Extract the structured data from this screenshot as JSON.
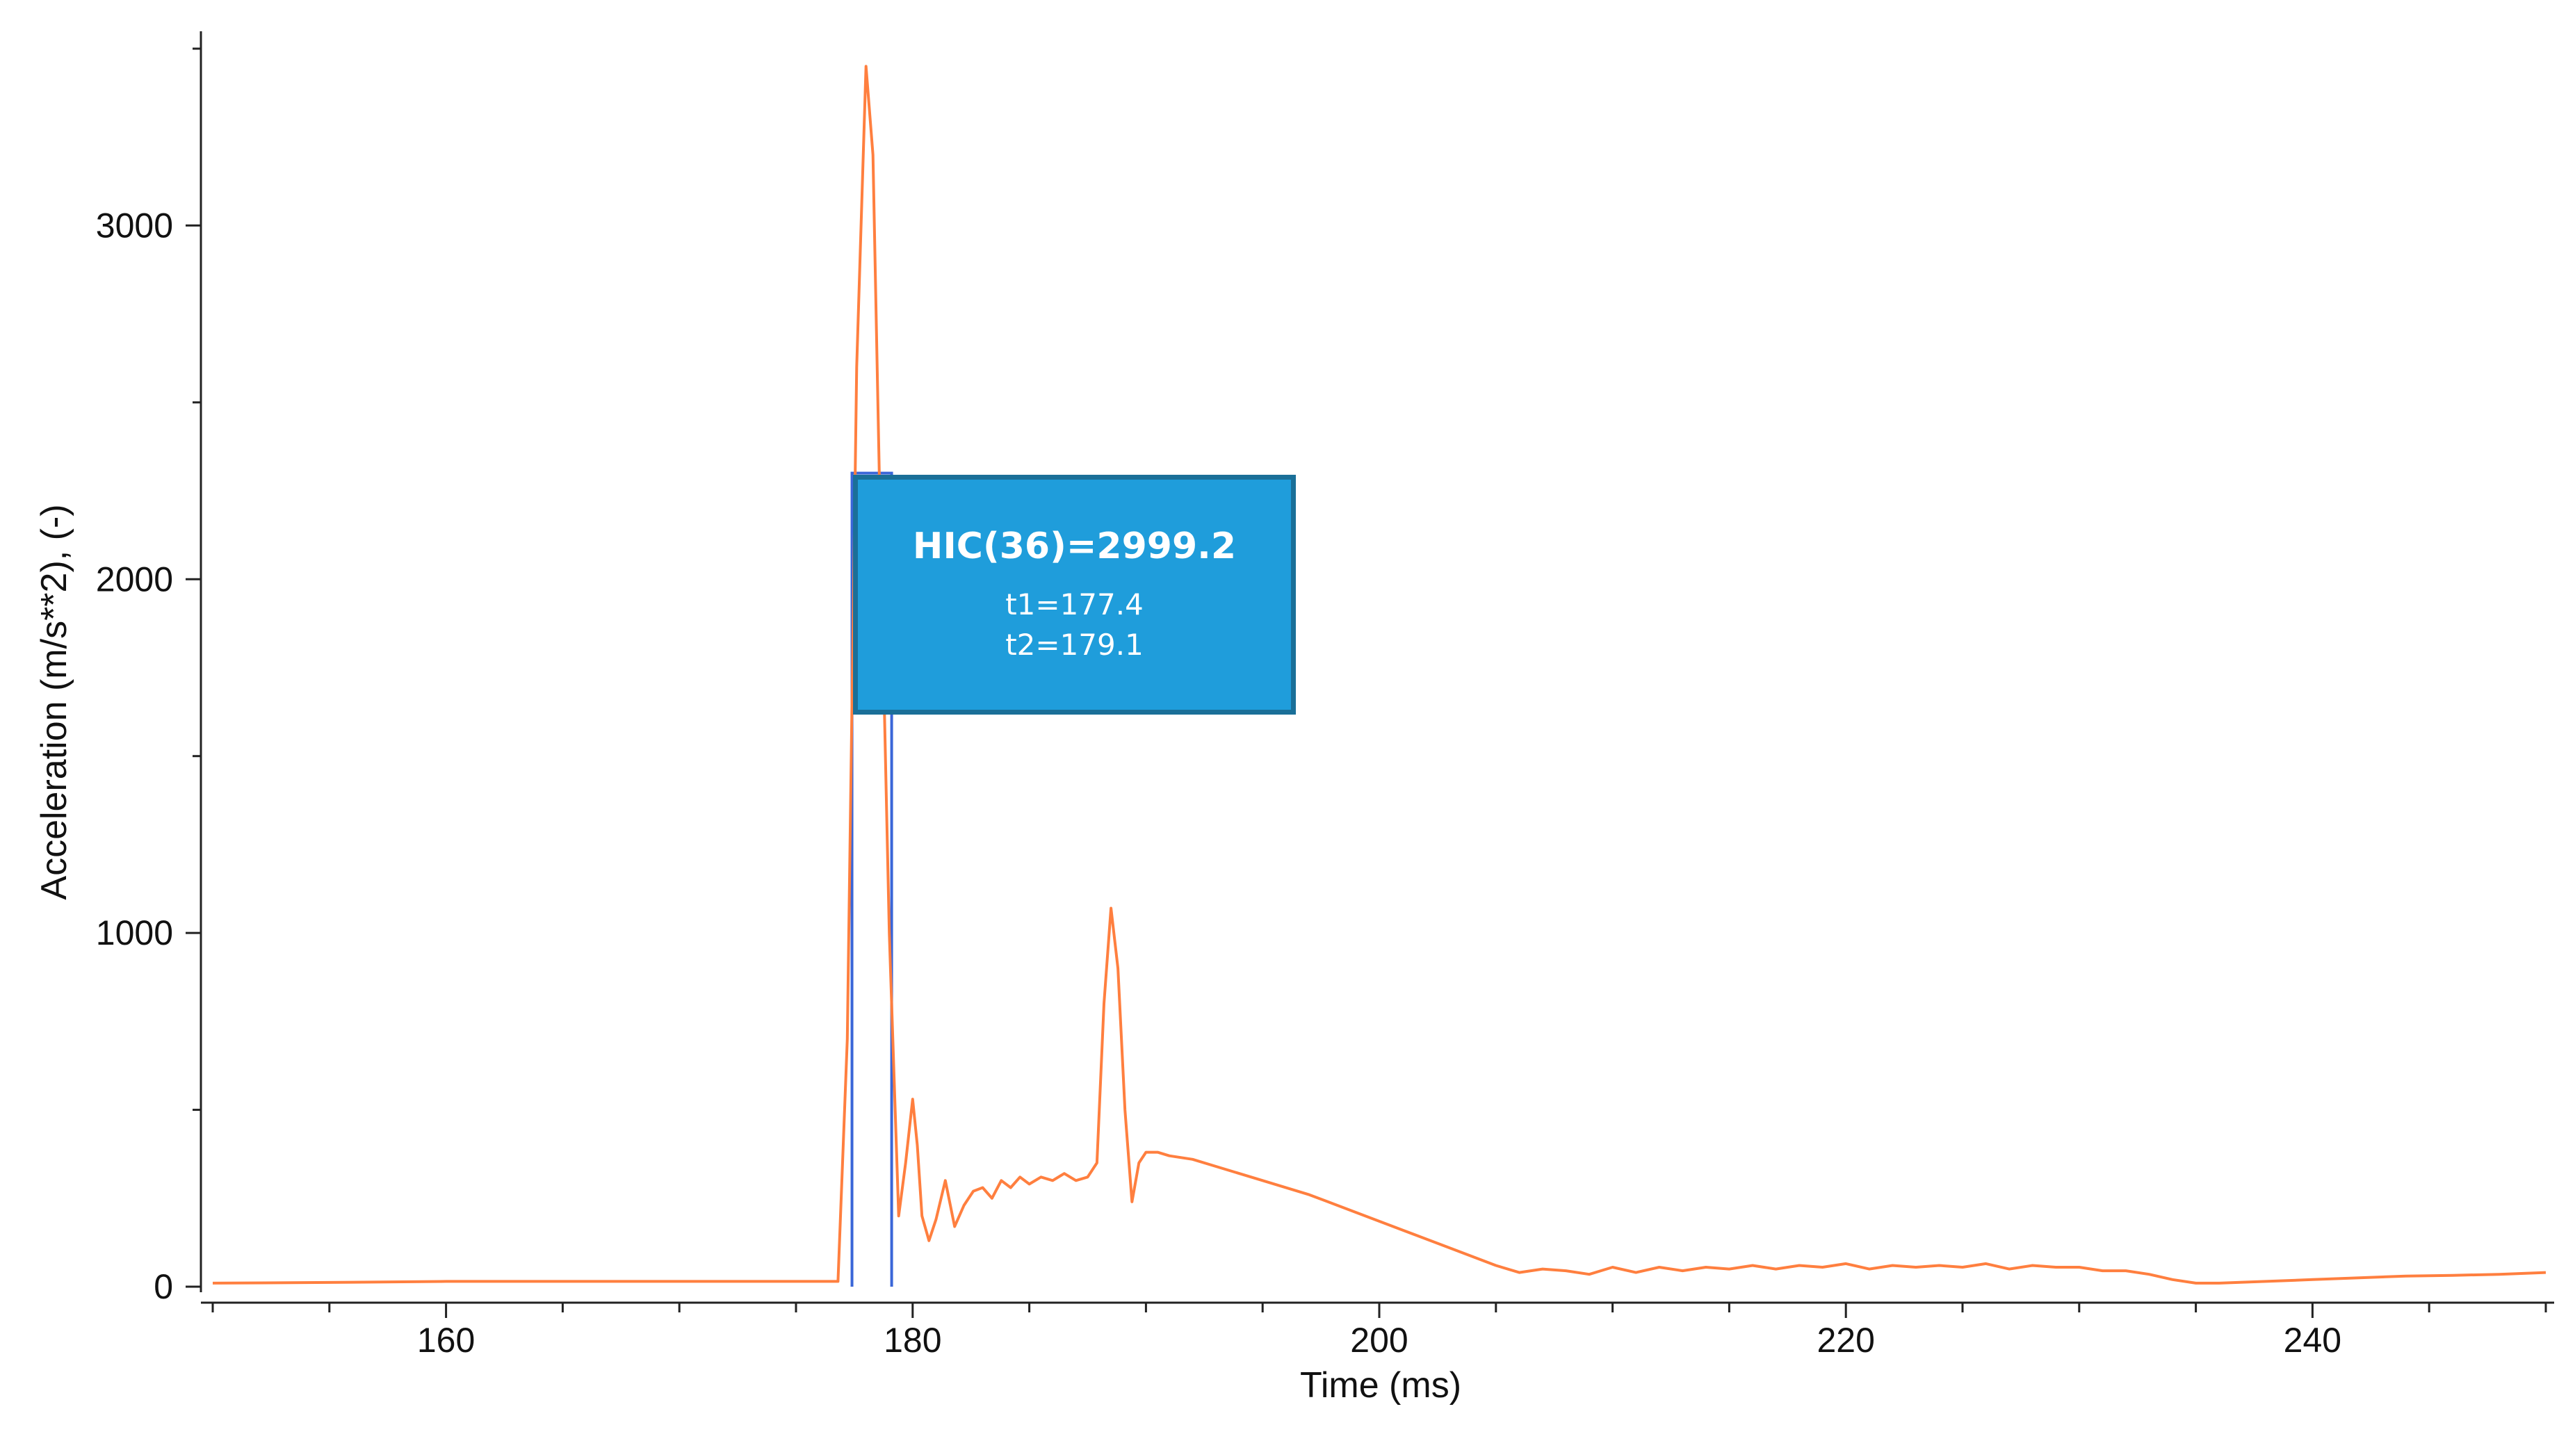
{
  "chart_data": {
    "type": "line",
    "xlabel": "Time (ms)",
    "ylabel": "Acceleration (m/s**2),  (-)",
    "xlim": [
      150,
      250
    ],
    "ylim": [
      0,
      3500
    ],
    "x_ticks": [
      160,
      180,
      200,
      220,
      240
    ],
    "y_ticks": [
      0,
      1000,
      2000,
      3000
    ],
    "grid": false,
    "series": [
      {
        "color": "#ff7f3f",
        "x": [
          150,
          155,
          160,
          165,
          170,
          175,
          176.8,
          177.2,
          177.6,
          178.0,
          178.3,
          178.6,
          179.0,
          179.4,
          179.7,
          180.0,
          180.2,
          180.4,
          180.7,
          181.0,
          181.4,
          181.8,
          182.2,
          182.6,
          183.0,
          183.4,
          183.8,
          184.2,
          184.6,
          185.0,
          185.5,
          186.0,
          186.5,
          187.0,
          187.5,
          187.9,
          188.2,
          188.5,
          188.8,
          189.1,
          189.4,
          189.7,
          190.0,
          190.5,
          191.0,
          192.0,
          193.0,
          195.0,
          197.0,
          199.0,
          201.0,
          203.0,
          205.0,
          206.0,
          207.0,
          208.0,
          209.0,
          210.0,
          211.0,
          212.0,
          213.0,
          214.0,
          215.0,
          216.0,
          217.0,
          218.0,
          219.0,
          220.0,
          221.0,
          222.0,
          223.0,
          224.0,
          225.0,
          226.0,
          227.0,
          228.0,
          229.0,
          230.0,
          231.0,
          232.0,
          233.0,
          234.0,
          235.0,
          236.0,
          238.0,
          240.0,
          242.0,
          244.0,
          246.0,
          248.0,
          250.0
        ],
        "y": [
          10,
          12,
          15,
          15,
          15,
          15,
          15,
          700,
          2600,
          3450,
          3200,
          2200,
          1000,
          200,
          350,
          530,
          400,
          200,
          130,
          190,
          300,
          170,
          230,
          270,
          280,
          250,
          300,
          280,
          310,
          290,
          310,
          300,
          320,
          300,
          310,
          350,
          800,
          1070,
          900,
          500,
          240,
          350,
          380,
          380,
          370,
          360,
          340,
          300,
          260,
          210,
          160,
          110,
          60,
          40,
          50,
          45,
          35,
          55,
          40,
          55,
          45,
          55,
          50,
          60,
          50,
          60,
          55,
          65,
          50,
          60,
          55,
          60,
          55,
          65,
          50,
          60,
          55,
          55,
          45,
          45,
          35,
          20,
          10,
          10,
          15,
          20,
          25,
          30,
          32,
          35,
          40
        ]
      }
    ],
    "hic_window": {
      "t1": 177.4,
      "t2": 179.1,
      "level": 2300,
      "color": "#3a66d8"
    },
    "annotation": {
      "title": "HIC(36)=2999.2",
      "line1": "t1=177.4",
      "line2": "t2=179.1"
    }
  }
}
